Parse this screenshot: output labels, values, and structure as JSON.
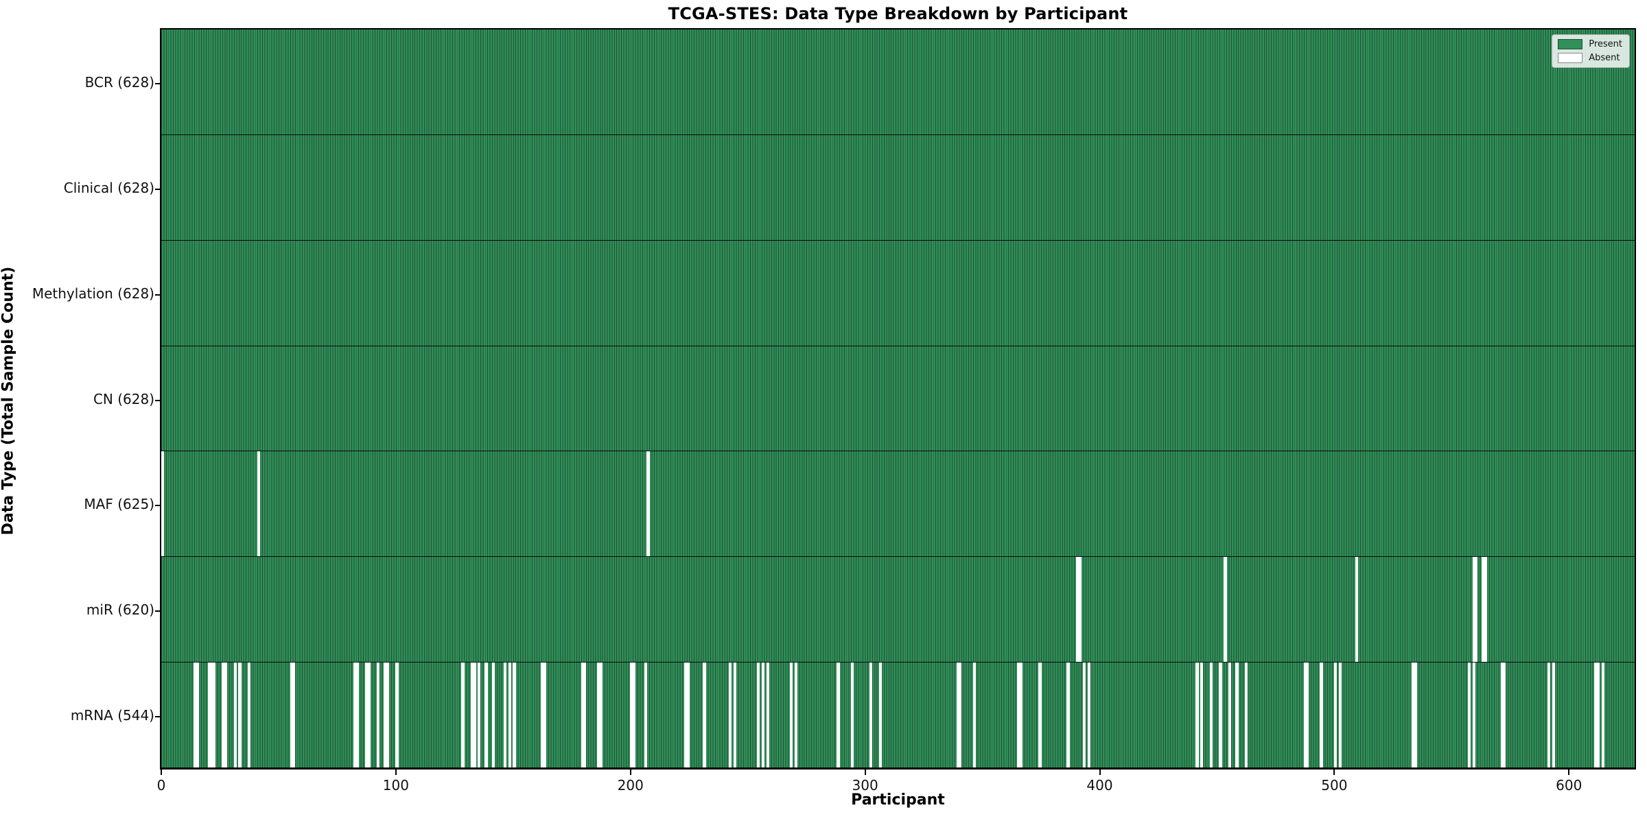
{
  "title": "TCGA-STES: Data Type Breakdown by Participant",
  "xlabel": "Participant",
  "ylabel": "Data Type (Total Sample Count)",
  "legend": {
    "present_label": "Present",
    "absent_label": "Absent"
  },
  "colors": {
    "present_fill": "#318f58",
    "present_edge": "#1d5036",
    "absent_fill": "#ffffff",
    "plot_border": "#000000"
  },
  "chart_data": {
    "type": "heatmap",
    "title": "TCGA-STES: Data Type Breakdown by Participant",
    "xlabel": "Participant",
    "ylabel": "Data Type (Total Sample Count)",
    "x_range": [
      0,
      628
    ],
    "n_participants": 628,
    "x_ticks": [
      "0",
      "100",
      "200",
      "300",
      "400",
      "500",
      "600"
    ],
    "x_tick_values": [
      0,
      100,
      200,
      300,
      400,
      500,
      600
    ],
    "legend_entries": [
      "Present",
      "Absent"
    ],
    "legend_position": "upper right",
    "rows": [
      {
        "label": "BCR",
        "total": 628,
        "display": "BCR (628)",
        "absent": []
      },
      {
        "label": "Clinical",
        "total": 628,
        "display": "Clinical (628)",
        "absent": []
      },
      {
        "label": "Methylation",
        "total": 628,
        "display": "Methylation (628)",
        "absent": []
      },
      {
        "label": "CN",
        "total": 628,
        "display": "CN (628)",
        "absent": []
      },
      {
        "label": "MAF",
        "total": 625,
        "display": "MAF (625)",
        "absent": [
          0,
          41,
          207
        ]
      },
      {
        "label": "miR",
        "total": 620,
        "display": "miR (620)",
        "absent": [
          390,
          391,
          453,
          509,
          559,
          560,
          563,
          564
        ]
      },
      {
        "label": "mRNA",
        "total": 544,
        "display": "mRNA (544)",
        "absent": [
          14,
          15,
          20,
          21,
          22,
          26,
          27,
          31,
          33,
          37,
          55,
          56,
          82,
          83,
          87,
          88,
          92,
          95,
          96,
          100,
          128,
          132,
          133,
          135,
          138,
          141,
          146,
          148,
          150,
          162,
          163,
          179,
          180,
          186,
          187,
          200,
          201,
          206,
          223,
          224,
          231,
          242,
          244,
          254,
          256,
          258,
          268,
          270,
          288,
          294,
          302,
          306,
          339,
          340,
          346,
          365,
          366,
          374,
          386,
          393,
          395,
          441,
          443,
          447,
          451,
          455,
          458,
          462,
          487,
          488,
          494,
          500,
          502,
          533,
          534,
          557,
          559,
          571,
          572,
          591,
          593,
          611,
          612,
          614
        ]
      }
    ]
  }
}
